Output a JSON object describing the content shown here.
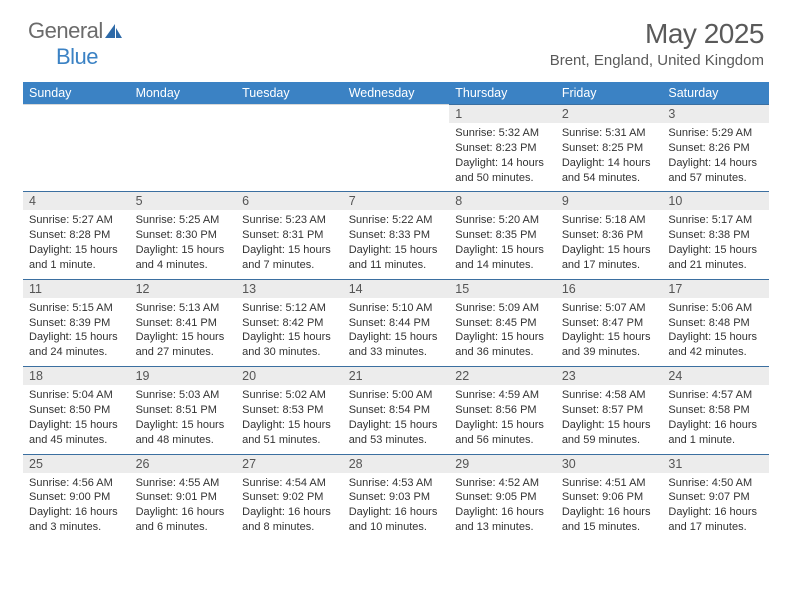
{
  "brand": {
    "part1": "General",
    "part2": "Blue"
  },
  "title": "May 2025",
  "location": "Brent, England, United Kingdom",
  "header_bg": "#3b82c4",
  "header_fg": "#ffffff",
  "daynum_bg": "#ececec",
  "rule_color": "#3b6fa0",
  "text_color": "#333333",
  "font_family": "Arial",
  "day_headers": [
    "Sunday",
    "Monday",
    "Tuesday",
    "Wednesday",
    "Thursday",
    "Friday",
    "Saturday"
  ],
  "weeks": [
    [
      null,
      null,
      null,
      null,
      {
        "n": "1",
        "sr": "5:32 AM",
        "ss": "8:23 PM",
        "dl": "14 hours and 50 minutes."
      },
      {
        "n": "2",
        "sr": "5:31 AM",
        "ss": "8:25 PM",
        "dl": "14 hours and 54 minutes."
      },
      {
        "n": "3",
        "sr": "5:29 AM",
        "ss": "8:26 PM",
        "dl": "14 hours and 57 minutes."
      }
    ],
    [
      {
        "n": "4",
        "sr": "5:27 AM",
        "ss": "8:28 PM",
        "dl": "15 hours and 1 minute."
      },
      {
        "n": "5",
        "sr": "5:25 AM",
        "ss": "8:30 PM",
        "dl": "15 hours and 4 minutes."
      },
      {
        "n": "6",
        "sr": "5:23 AM",
        "ss": "8:31 PM",
        "dl": "15 hours and 7 minutes."
      },
      {
        "n": "7",
        "sr": "5:22 AM",
        "ss": "8:33 PM",
        "dl": "15 hours and 11 minutes."
      },
      {
        "n": "8",
        "sr": "5:20 AM",
        "ss": "8:35 PM",
        "dl": "15 hours and 14 minutes."
      },
      {
        "n": "9",
        "sr": "5:18 AM",
        "ss": "8:36 PM",
        "dl": "15 hours and 17 minutes."
      },
      {
        "n": "10",
        "sr": "5:17 AM",
        "ss": "8:38 PM",
        "dl": "15 hours and 21 minutes."
      }
    ],
    [
      {
        "n": "11",
        "sr": "5:15 AM",
        "ss": "8:39 PM",
        "dl": "15 hours and 24 minutes."
      },
      {
        "n": "12",
        "sr": "5:13 AM",
        "ss": "8:41 PM",
        "dl": "15 hours and 27 minutes."
      },
      {
        "n": "13",
        "sr": "5:12 AM",
        "ss": "8:42 PM",
        "dl": "15 hours and 30 minutes."
      },
      {
        "n": "14",
        "sr": "5:10 AM",
        "ss": "8:44 PM",
        "dl": "15 hours and 33 minutes."
      },
      {
        "n": "15",
        "sr": "5:09 AM",
        "ss": "8:45 PM",
        "dl": "15 hours and 36 minutes."
      },
      {
        "n": "16",
        "sr": "5:07 AM",
        "ss": "8:47 PM",
        "dl": "15 hours and 39 minutes."
      },
      {
        "n": "17",
        "sr": "5:06 AM",
        "ss": "8:48 PM",
        "dl": "15 hours and 42 minutes."
      }
    ],
    [
      {
        "n": "18",
        "sr": "5:04 AM",
        "ss": "8:50 PM",
        "dl": "15 hours and 45 minutes."
      },
      {
        "n": "19",
        "sr": "5:03 AM",
        "ss": "8:51 PM",
        "dl": "15 hours and 48 minutes."
      },
      {
        "n": "20",
        "sr": "5:02 AM",
        "ss": "8:53 PM",
        "dl": "15 hours and 51 minutes."
      },
      {
        "n": "21",
        "sr": "5:00 AM",
        "ss": "8:54 PM",
        "dl": "15 hours and 53 minutes."
      },
      {
        "n": "22",
        "sr": "4:59 AM",
        "ss": "8:56 PM",
        "dl": "15 hours and 56 minutes."
      },
      {
        "n": "23",
        "sr": "4:58 AM",
        "ss": "8:57 PM",
        "dl": "15 hours and 59 minutes."
      },
      {
        "n": "24",
        "sr": "4:57 AM",
        "ss": "8:58 PM",
        "dl": "16 hours and 1 minute."
      }
    ],
    [
      {
        "n": "25",
        "sr": "4:56 AM",
        "ss": "9:00 PM",
        "dl": "16 hours and 3 minutes."
      },
      {
        "n": "26",
        "sr": "4:55 AM",
        "ss": "9:01 PM",
        "dl": "16 hours and 6 minutes."
      },
      {
        "n": "27",
        "sr": "4:54 AM",
        "ss": "9:02 PM",
        "dl": "16 hours and 8 minutes."
      },
      {
        "n": "28",
        "sr": "4:53 AM",
        "ss": "9:03 PM",
        "dl": "16 hours and 10 minutes."
      },
      {
        "n": "29",
        "sr": "4:52 AM",
        "ss": "9:05 PM",
        "dl": "16 hours and 13 minutes."
      },
      {
        "n": "30",
        "sr": "4:51 AM",
        "ss": "9:06 PM",
        "dl": "16 hours and 15 minutes."
      },
      {
        "n": "31",
        "sr": "4:50 AM",
        "ss": "9:07 PM",
        "dl": "16 hours and 17 minutes."
      }
    ]
  ],
  "labels": {
    "sunrise": "Sunrise:",
    "sunset": "Sunset:",
    "daylight": "Daylight:"
  }
}
